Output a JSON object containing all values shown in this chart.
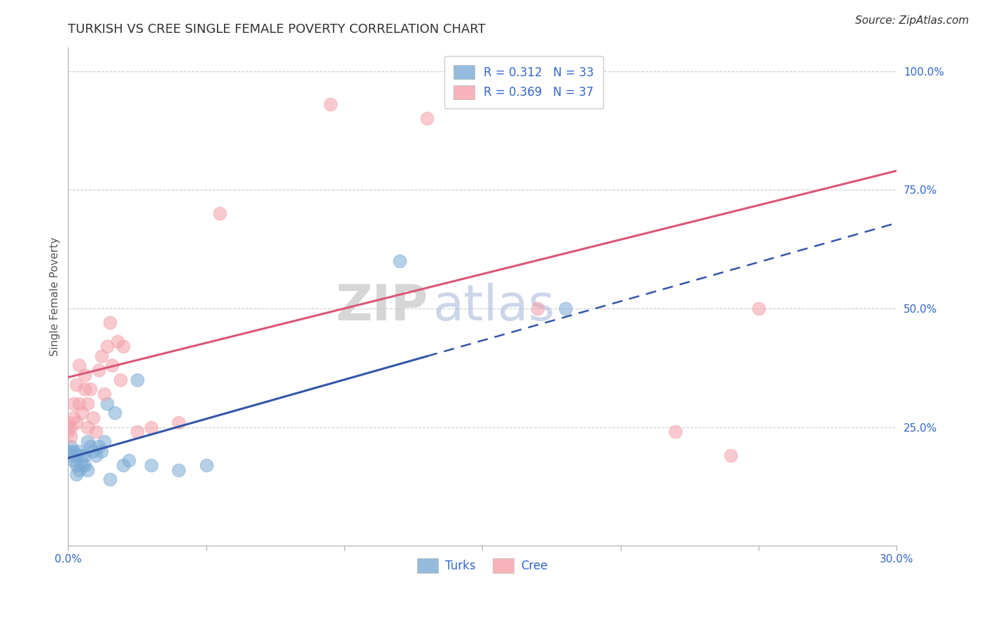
{
  "title": "TURKISH VS CREE SINGLE FEMALE POVERTY CORRELATION CHART",
  "source": "Source: ZipAtlas.com",
  "ylabel": "Single Female Poverty",
  "xlabel": "",
  "xlim": [
    0.0,
    0.3
  ],
  "ylim": [
    0.0,
    1.05
  ],
  "xticks": [
    0.0,
    0.05,
    0.1,
    0.15,
    0.2,
    0.25,
    0.3
  ],
  "xticklabels": [
    "0.0%",
    "",
    "",
    "",
    "",
    "",
    "30.0%"
  ],
  "ytick_positions": [
    0.25,
    0.5,
    0.75,
    1.0
  ],
  "ytick_labels": [
    "25.0%",
    "50.0%",
    "75.0%",
    "100.0%"
  ],
  "grid_color": "#cccccc",
  "background_color": "#ffffff",
  "turks_color": "#7aaad4",
  "cree_color": "#f4a0a8",
  "turks_R": 0.312,
  "turks_N": 33,
  "cree_R": 0.369,
  "cree_N": 37,
  "legend_label_color": "#3366cc",
  "watermark_zip": "ZIP",
  "watermark_atlas": "atlas",
  "turks_line_color": "#3355aa",
  "cree_line_color": "#dd5577",
  "turks_x": [
    0.0,
    0.001,
    0.001,
    0.002,
    0.002,
    0.003,
    0.003,
    0.003,
    0.004,
    0.004,
    0.005,
    0.005,
    0.006,
    0.006,
    0.007,
    0.007,
    0.008,
    0.009,
    0.01,
    0.011,
    0.012,
    0.013,
    0.014,
    0.015,
    0.017,
    0.02,
    0.022,
    0.025,
    0.03,
    0.04,
    0.05,
    0.12,
    0.18
  ],
  "turks_y": [
    0.2,
    0.19,
    0.21,
    0.18,
    0.2,
    0.15,
    0.17,
    0.19,
    0.16,
    0.2,
    0.17,
    0.19,
    0.17,
    0.19,
    0.16,
    0.22,
    0.21,
    0.2,
    0.19,
    0.21,
    0.2,
    0.22,
    0.3,
    0.14,
    0.28,
    0.17,
    0.18,
    0.35,
    0.17,
    0.16,
    0.17,
    0.6,
    0.5
  ],
  "cree_x": [
    0.0,
    0.0,
    0.001,
    0.001,
    0.002,
    0.002,
    0.003,
    0.003,
    0.004,
    0.004,
    0.005,
    0.006,
    0.006,
    0.007,
    0.007,
    0.008,
    0.009,
    0.01,
    0.011,
    0.012,
    0.013,
    0.014,
    0.015,
    0.016,
    0.018,
    0.019,
    0.02,
    0.025,
    0.03,
    0.04,
    0.055,
    0.095,
    0.13,
    0.17,
    0.22,
    0.24,
    0.25
  ],
  "cree_y": [
    0.24,
    0.26,
    0.23,
    0.25,
    0.27,
    0.3,
    0.26,
    0.34,
    0.3,
    0.38,
    0.28,
    0.33,
    0.36,
    0.25,
    0.3,
    0.33,
    0.27,
    0.24,
    0.37,
    0.4,
    0.32,
    0.42,
    0.47,
    0.38,
    0.43,
    0.35,
    0.42,
    0.24,
    0.25,
    0.26,
    0.7,
    0.93,
    0.9,
    0.5,
    0.24,
    0.19,
    0.5
  ],
  "title_fontsize": 13,
  "axis_label_fontsize": 11,
  "tick_fontsize": 11,
  "source_fontsize": 11,
  "legend_fontsize": 12,
  "turks_line_x_solid_end": 0.13,
  "cree_line_intercept": 0.355,
  "cree_line_slope": 1.45,
  "turks_line_intercept": 0.185,
  "turks_line_slope": 1.65
}
